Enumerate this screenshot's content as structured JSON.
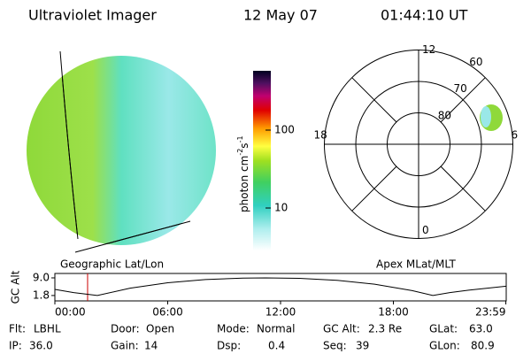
{
  "header": {
    "title": "Ultraviolet Imager",
    "date": "12 May 07",
    "time": "01:44:10 UT"
  },
  "image_labels": {
    "left": "Geographic Lat/Lon",
    "right": "Apex MLat/MLT"
  },
  "colorbar": {
    "label": [
      "photon cm",
      "-2",
      "s",
      "-1"
    ],
    "range": [
      2.85,
      577
    ],
    "log": true,
    "ticks": [
      10,
      100
    ]
  },
  "polar": {
    "lat_rings": [
      60,
      70,
      80
    ],
    "mlt_labels": [
      0,
      6,
      12,
      18
    ]
  },
  "chart_data": {
    "type": "line",
    "ylabel": "GC Alt",
    "color": "#000000",
    "x": [
      0,
      1,
      2.26,
      4,
      6,
      8,
      10,
      11.2,
      13,
      15,
      17,
      19,
      20.1,
      21,
      22,
      24
    ],
    "values": [
      4.3,
      3.0,
      1.8,
      4.8,
      7.0,
      8.3,
      8.9,
      9.0,
      8.8,
      8.0,
      6.4,
      3.8,
      1.8,
      3.0,
      4.0,
      5.6
    ],
    "xlim": [
      0,
      24
    ],
    "ylim": [
      -0.4,
      10.8
    ],
    "xticks": [
      {
        "value": 0,
        "label": "00:00"
      },
      {
        "value": 6,
        "label": "06:00"
      },
      {
        "value": 12,
        "label": "12:00"
      },
      {
        "value": 18,
        "label": "18:00"
      },
      {
        "value": 23.98,
        "label": "23:59"
      }
    ],
    "yticks": [
      {
        "value": 9,
        "label": "9.0"
      },
      {
        "value": 1.8,
        "label": "1.8"
      }
    ],
    "current_time": 1.74,
    "current_time_color": "#cc0000"
  },
  "info": [
    [
      [
        "Flt:",
        "LBHL"
      ],
      [
        "Door:",
        "Open"
      ],
      [
        "Mode:",
        "Normal"
      ],
      [
        "GC Alt:",
        "2.3 Re"
      ],
      [
        "GLat:",
        "63.0"
      ]
    ],
    [
      [
        "IP:",
        "36.0"
      ],
      [
        "Gain:",
        "14"
      ],
      [
        "Dsp:",
        "0.4"
      ],
      [
        "Seq:",
        "39"
      ],
      [
        "GLon:",
        "80.9"
      ]
    ]
  ]
}
